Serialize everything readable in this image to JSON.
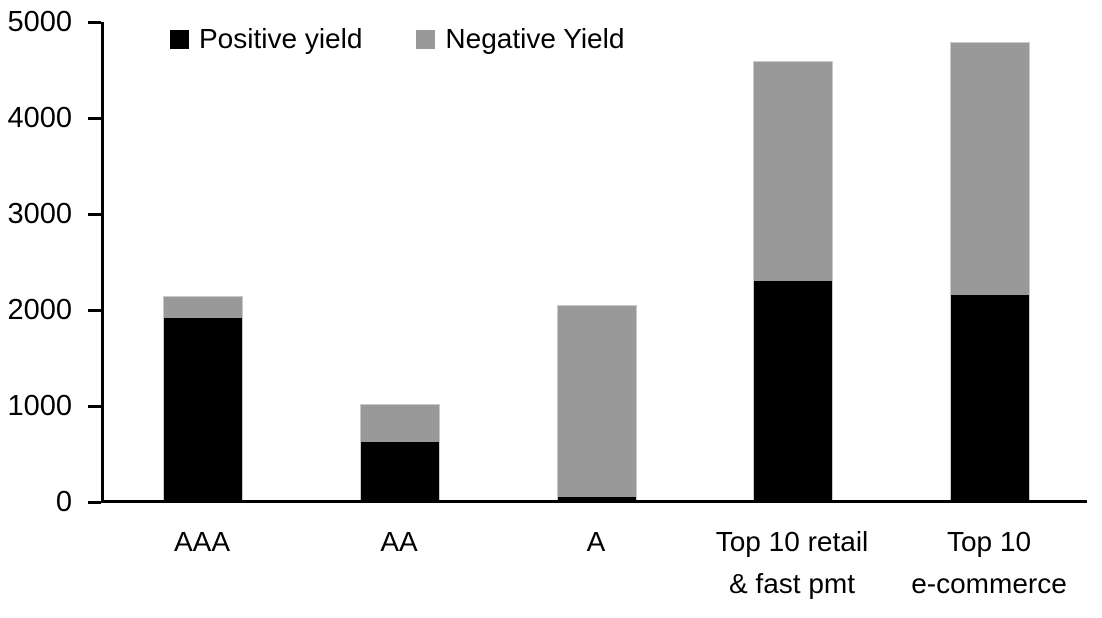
{
  "chart_data": {
    "type": "bar",
    "stacked": true,
    "title": "",
    "xlabel": "",
    "ylabel": "",
    "categories": [
      "AAA",
      "AA",
      "A",
      "Top 10 retail\n& fast pmt",
      "Top 10\ne-commerce"
    ],
    "series": [
      {
        "name": "Positive yield",
        "color": "#000000",
        "values": [
          1900,
          620,
          40,
          2290,
          2150
        ]
      },
      {
        "name": "Negative Yield",
        "color": "#999999",
        "values": [
          220,
          380,
          1990,
          2280,
          2620
        ]
      }
    ],
    "totals": [
      2120,
      1000,
      2030,
      4570,
      4770
    ],
    "ylim": [
      0,
      5000
    ],
    "yticks": [
      0,
      1000,
      2000,
      3000,
      4000,
      5000
    ],
    "legend_position": "top",
    "grid": false,
    "colors": {
      "axis": "#000000",
      "bar_border": "#c9c9c9",
      "background": "#ffffff",
      "text": "#000000"
    }
  }
}
